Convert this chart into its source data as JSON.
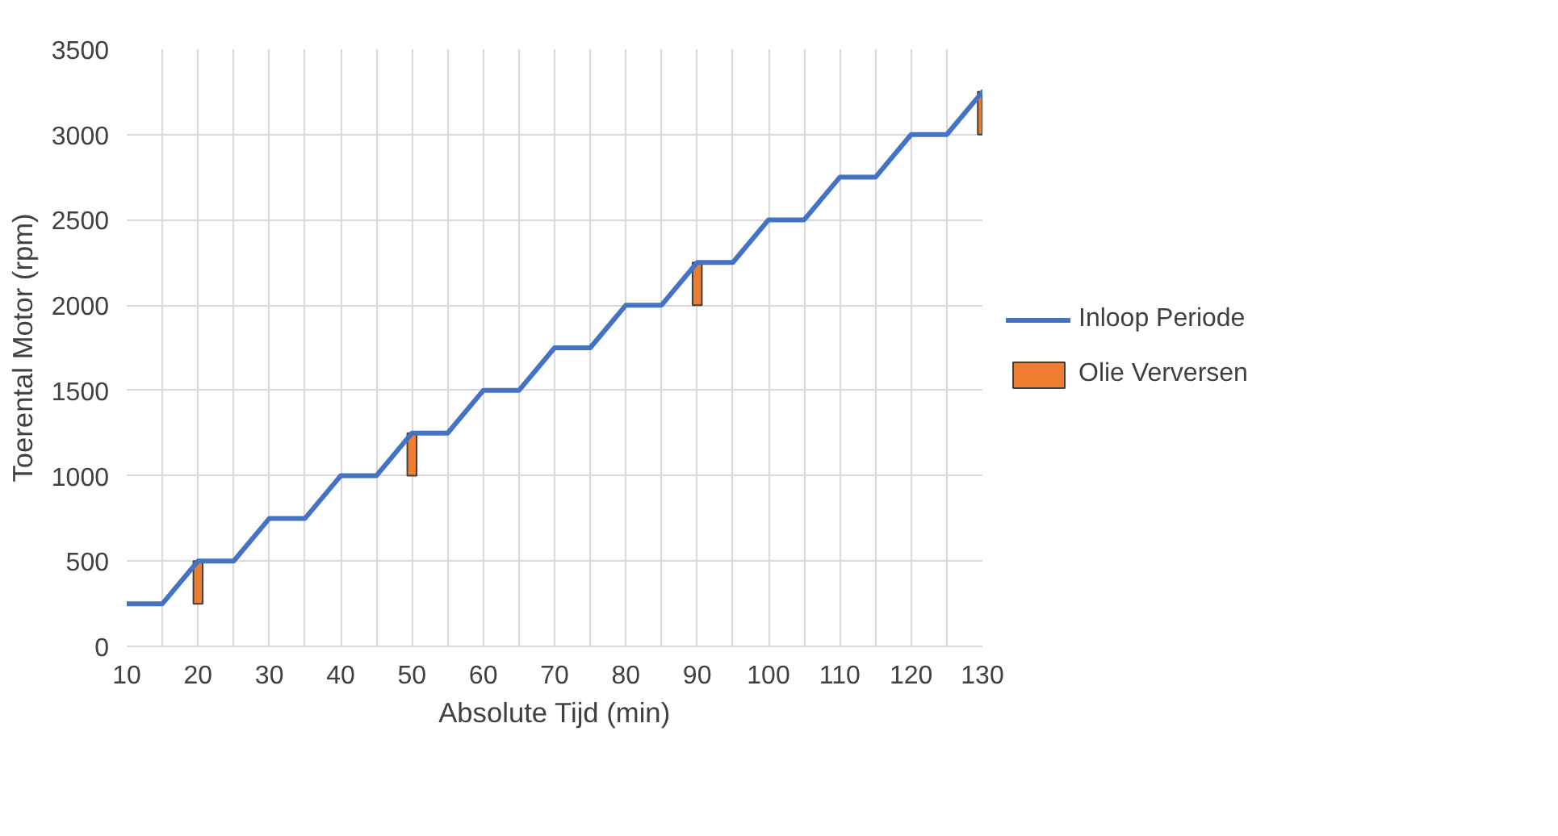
{
  "chart_data": {
    "type": "line",
    "xlabel": "Absolute Tijd (min)",
    "ylabel": "Toerental Motor (rpm)",
    "x": [
      10,
      15,
      20,
      25,
      30,
      35,
      40,
      45,
      50,
      55,
      60,
      65,
      70,
      75,
      80,
      85,
      90,
      95,
      100,
      105,
      110,
      115,
      120,
      125,
      130
    ],
    "series": [
      {
        "name": "Inloop Periode",
        "color": "#4472c4",
        "values": [
          250,
          250,
          500,
          500,
          750,
          750,
          1000,
          1000,
          1250,
          1250,
          1500,
          1500,
          1750,
          1750,
          2000,
          2000,
          2250,
          2250,
          2500,
          2500,
          2750,
          2750,
          3000,
          3000,
          3250
        ]
      },
      {
        "name": "Olie Verversen",
        "type": "bar",
        "color": "#ed7d31",
        "x": [
          20,
          50,
          90,
          130
        ],
        "base": [
          250,
          1000,
          2000,
          3000
        ],
        "values": [
          250,
          250,
          250,
          250
        ]
      }
    ],
    "xlim": [
      10,
      130
    ],
    "xticks": [
      10,
      {
        "value": 15,
        "label": null
      },
      20,
      {
        "value": 25,
        "label": null
      },
      30,
      {
        "value": 35,
        "label": null
      },
      40,
      {
        "value": 45,
        "label": null
      },
      50,
      {
        "value": 55,
        "label": null
      },
      60,
      {
        "value": 65,
        "label": null
      },
      70,
      {
        "value": 75,
        "label": null
      },
      80,
      {
        "value": 85,
        "label": null
      },
      90,
      {
        "value": 95,
        "label": null
      },
      100,
      {
        "value": 105,
        "label": null
      },
      110,
      {
        "value": 115,
        "label": null
      },
      120,
      {
        "value": 125,
        "label": null
      },
      130
    ],
    "ylim": [
      0,
      3500
    ],
    "yticks": [
      0,
      500,
      1000,
      1500,
      2000,
      2500,
      3000,
      3500
    ],
    "grid": true,
    "legend": "right"
  }
}
